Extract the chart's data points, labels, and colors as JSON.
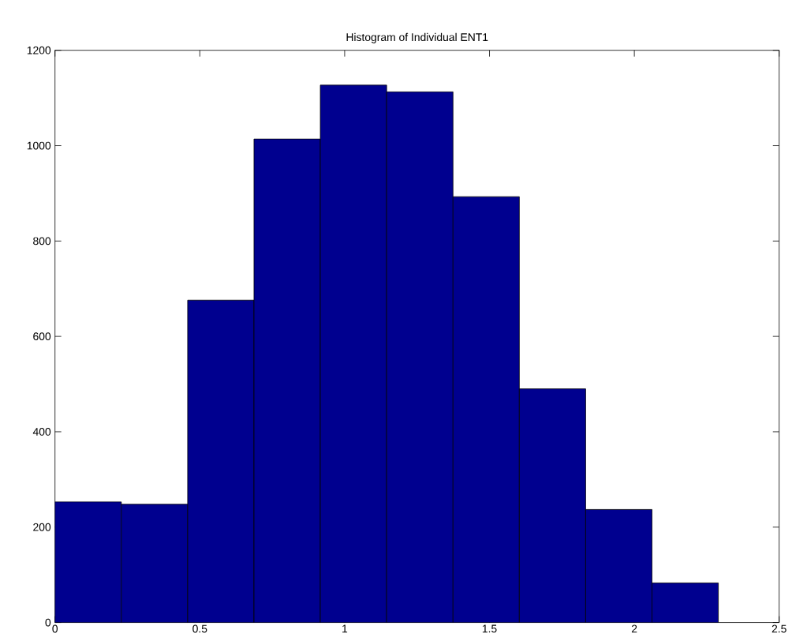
{
  "chart_data": {
    "type": "histogram",
    "title": "Histogram of Individual ENT1",
    "bins": [
      0,
      0.229,
      0.458,
      0.687,
      0.916,
      1.145,
      1.374,
      1.603,
      1.832,
      2.061,
      2.29
    ],
    "values": [
      253,
      248,
      676,
      1014,
      1127,
      1113,
      893,
      490,
      237,
      83
    ],
    "color": "#00008f",
    "xlim": [
      0,
      2.5
    ],
    "ylim": [
      0,
      1200
    ],
    "xticks": [
      0,
      0.5,
      1,
      1.5,
      2,
      2.5
    ],
    "yticks": [
      0,
      200,
      400,
      600,
      800,
      1000,
      1200
    ],
    "grid": false
  }
}
